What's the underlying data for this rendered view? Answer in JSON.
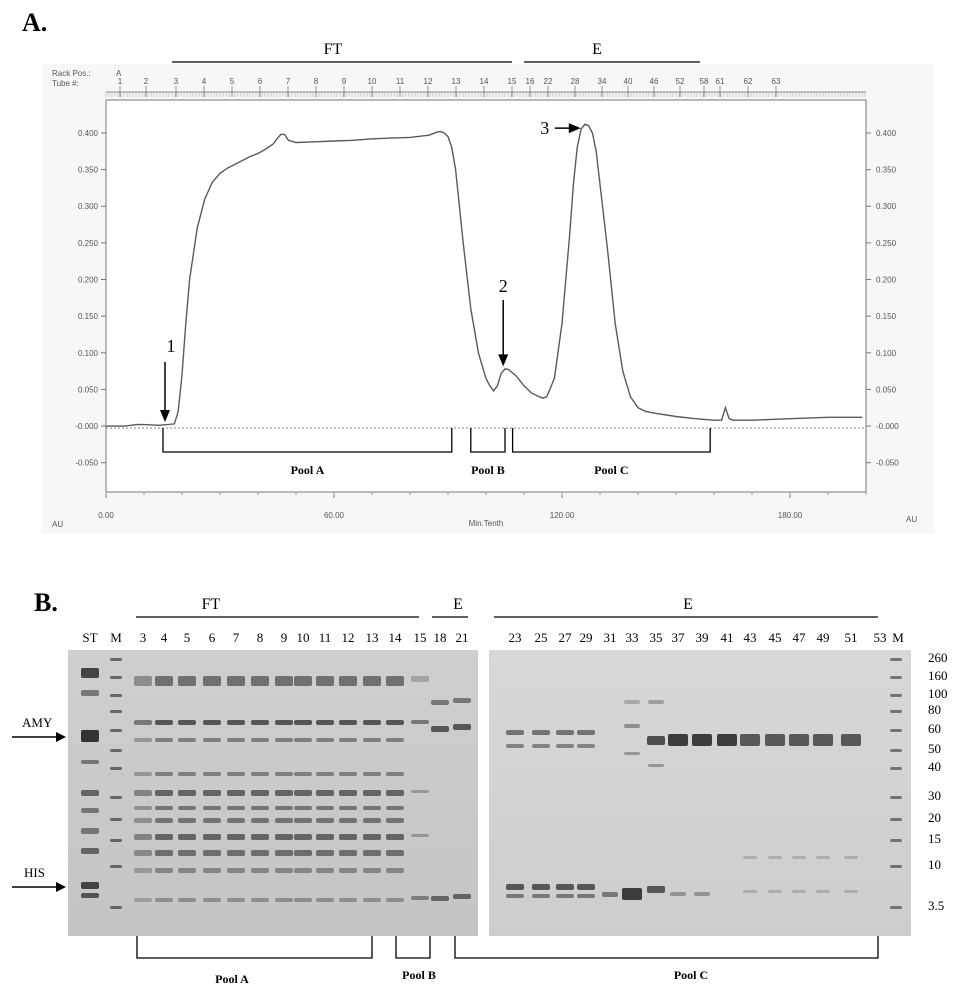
{
  "panel_a": {
    "label": "A.",
    "header_ft": "FT",
    "header_e": "E",
    "rack_pos_label": "Rack Pos.:",
    "rack_pos_value": "A",
    "tube_label": "Tube #:",
    "tubes": [
      "1",
      "2",
      "3",
      "4",
      "5",
      "6",
      "7",
      "8",
      "9",
      "10",
      "11",
      "12",
      "13",
      "14",
      "15",
      "16",
      "22",
      "28",
      "34",
      "40",
      "46",
      "52",
      "58",
      "61",
      "62",
      "63"
    ],
    "chart_data": {
      "type": "line",
      "x_axis_label": "Min.Tenth",
      "y_axis_unit_left": "AU",
      "y_axis_unit_right": "AU",
      "x_ticks": [
        "0.00",
        "60.00",
        "120.00",
        "180.00"
      ],
      "y_ticks_left": [
        "0.400",
        "0.350",
        "0.300",
        "0.250",
        "0.200",
        "0.150",
        "0.100",
        "0.050",
        "-0.000",
        "-0.050"
      ],
      "y_ticks_right": [
        "0.400",
        "0.350",
        "0.300",
        "0.250",
        "0.200",
        "0.150",
        "0.100",
        "0.050",
        "-0.000",
        "-0.050"
      ],
      "xlim": [
        0,
        200
      ],
      "ylim": [
        -0.09,
        0.445
      ],
      "series": [
        {
          "x": [
            0,
            5,
            8,
            10,
            14,
            18,
            19,
            20,
            21,
            22,
            24,
            26,
            28,
            30,
            32,
            35,
            38,
            40,
            42,
            44,
            45,
            46,
            47,
            48,
            50,
            55,
            60,
            65,
            70,
            75,
            80,
            85,
            87,
            88,
            89,
            90,
            91,
            92,
            94,
            96,
            98,
            100,
            101,
            102,
            103,
            104,
            105,
            106,
            108,
            110,
            112,
            114,
            115,
            116,
            118,
            120,
            122,
            123,
            124,
            125,
            126,
            127,
            128,
            129,
            130,
            132,
            134,
            136,
            138,
            140,
            142,
            145,
            150,
            155,
            160,
            162,
            163,
            164,
            165,
            170,
            180,
            190,
            199
          ],
          "y": [
            0,
            0,
            0.002,
            0.002,
            0.001,
            0.003,
            0.02,
            0.07,
            0.14,
            0.2,
            0.27,
            0.31,
            0.333,
            0.345,
            0.352,
            0.36,
            0.368,
            0.372,
            0.378,
            0.385,
            0.392,
            0.398,
            0.398,
            0.39,
            0.387,
            0.388,
            0.389,
            0.39,
            0.392,
            0.393,
            0.394,
            0.397,
            0.401,
            0.402,
            0.4,
            0.395,
            0.38,
            0.35,
            0.25,
            0.16,
            0.1,
            0.065,
            0.055,
            0.048,
            0.055,
            0.072,
            0.078,
            0.077,
            0.068,
            0.055,
            0.045,
            0.04,
            0.038,
            0.04,
            0.065,
            0.14,
            0.26,
            0.33,
            0.38,
            0.405,
            0.412,
            0.41,
            0.4,
            0.375,
            0.33,
            0.24,
            0.14,
            0.075,
            0.04,
            0.025,
            0.02,
            0.017,
            0.013,
            0.01,
            0.008,
            0.008,
            0.025,
            0.01,
            0.008,
            0.008,
            0.01,
            0.012,
            0.012
          ]
        }
      ]
    },
    "annotations": [
      {
        "label": "1",
        "x": 15,
        "y": 0
      },
      {
        "label": "2",
        "x": 104,
        "y": 0.076
      },
      {
        "label": "3",
        "x": 126,
        "y": 0.412
      }
    ],
    "pools": [
      {
        "label": "Pool A",
        "x_start": 15,
        "x_end": 91
      },
      {
        "label": "Pool B",
        "x_start": 96,
        "x_end": 105
      },
      {
        "label": "Pool C",
        "x_start": 107,
        "x_end": 159
      }
    ]
  },
  "panel_b": {
    "label": "B.",
    "header_ft": "FT",
    "header_e_left": "E",
    "header_e_right": "E",
    "lane_st": "ST",
    "lane_m": "M",
    "left_lanes": [
      "3",
      "4",
      "5",
      "6",
      "7",
      "8",
      "9",
      "10",
      "11",
      "12",
      "13",
      "14",
      "15",
      "18",
      "21"
    ],
    "right_lanes": [
      "23",
      "25",
      "27",
      "29",
      "31",
      "33",
      "35",
      "37",
      "39",
      "41",
      "43",
      "45",
      "47",
      "49",
      "51",
      "53"
    ],
    "mw_markers": [
      "260",
      "160",
      "100",
      "80",
      "60",
      "50",
      "40",
      "30",
      "20",
      "15",
      "10",
      "3.5"
    ],
    "arrow_amy": "AMY",
    "arrow_his": "HIS",
    "pools": [
      {
        "label": "Pool A"
      },
      {
        "label": "Pool B"
      },
      {
        "label": "Pool C"
      }
    ]
  }
}
